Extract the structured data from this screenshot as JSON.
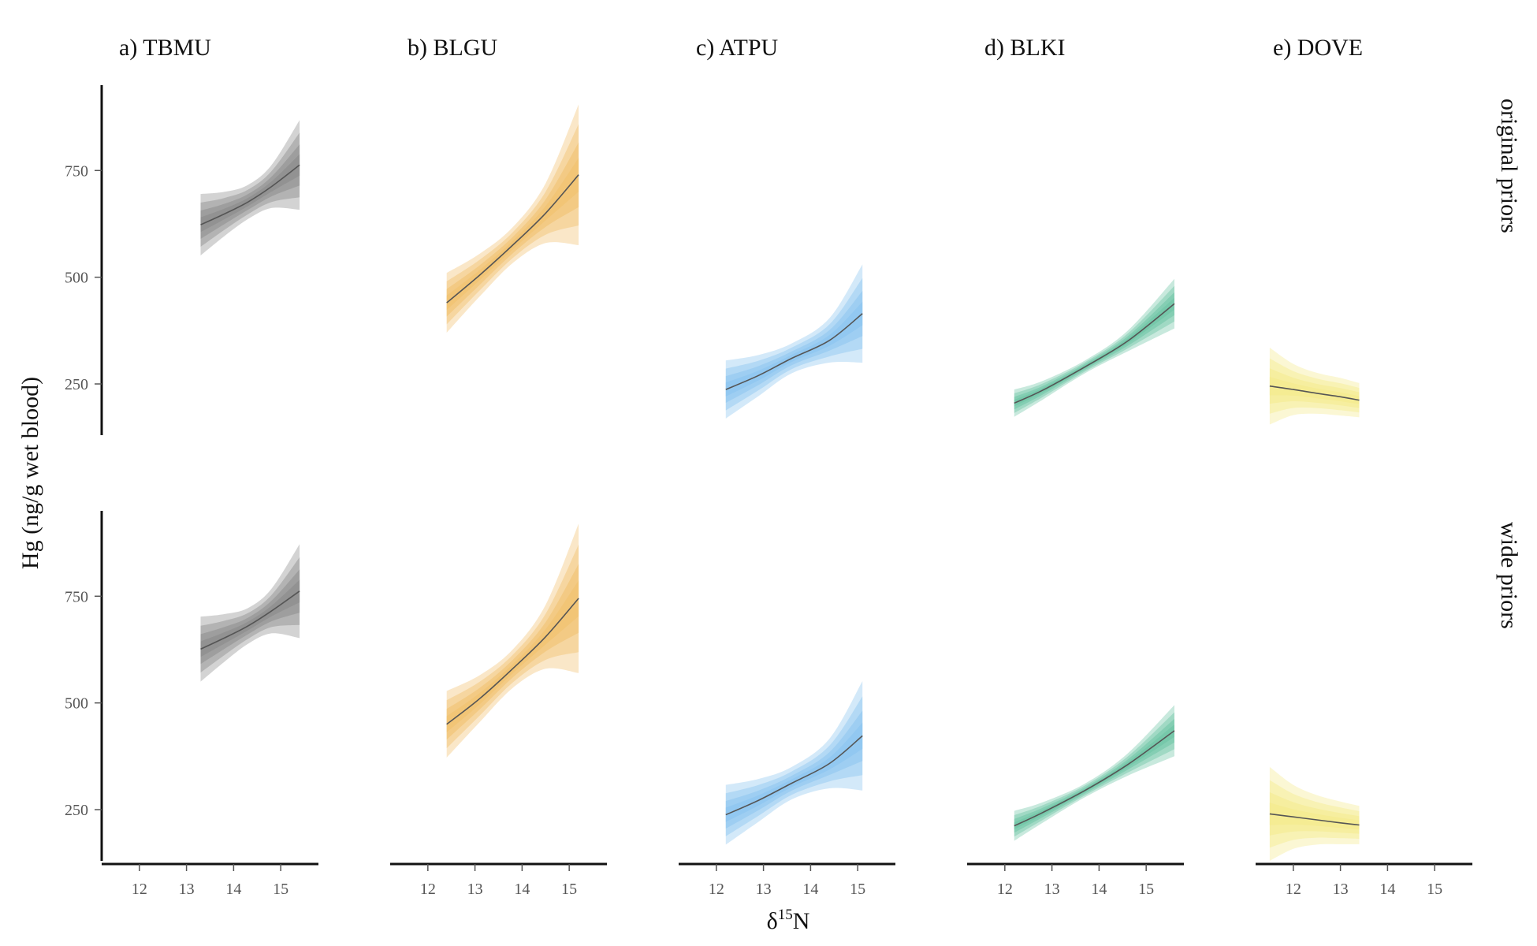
{
  "chart_data": {
    "type": "area",
    "title": "",
    "xlabel": {
      "base": "δ",
      "superscript": "15",
      "suffix": "N"
    },
    "ylabel": "Hg (ng/g wet blood)",
    "xlim": [
      11.2,
      15.8
    ],
    "ylim": [
      130,
      950
    ],
    "x_ticks": [
      12,
      13,
      14,
      15
    ],
    "y_ticks": [
      250,
      500,
      750
    ],
    "grid": false,
    "legend": "none",
    "rows": [
      {
        "label": "original priors"
      },
      {
        "label": "wide priors"
      }
    ],
    "panels": [
      {
        "title": "a) TBMU",
        "color": "#8c8c8c",
        "x": [
          13.3,
          13.8,
          14.3,
          14.8,
          15.4
        ],
        "median": [
          [
            623,
            648,
            676,
            712,
            763
          ],
          [
            626,
            652,
            680,
            715,
            762
          ]
        ],
        "outer_half_width": [
          [
            72,
            52,
            40,
            50,
            105
          ],
          [
            76,
            56,
            42,
            52,
            110
          ]
        ]
      },
      {
        "title": "b) BLGU",
        "color": "#f1c16e",
        "x": [
          12.4,
          13.1,
          13.8,
          14.5,
          15.2
        ],
        "median": [
          [
            440,
            505,
            575,
            650,
            740
          ],
          [
            450,
            510,
            580,
            655,
            745
          ]
        ],
        "outer_half_width": [
          [
            70,
            50,
            42,
            70,
            165
          ],
          [
            78,
            55,
            45,
            75,
            175
          ]
        ]
      },
      {
        "title": "c) ATPU",
        "color": "#8cc5ef",
        "x": [
          12.2,
          12.9,
          13.6,
          14.4,
          15.1
        ],
        "median": [
          [
            237,
            270,
            310,
            352,
            415
          ],
          [
            238,
            272,
            312,
            358,
            423
          ]
        ],
        "outer_half_width": [
          [
            68,
            48,
            35,
            52,
            115
          ],
          [
            70,
            50,
            38,
            58,
            128
          ]
        ]
      },
      {
        "title": "d) BLKI",
        "color": "#6ec5a6",
        "x": [
          12.2,
          12.8,
          13.7,
          14.6,
          15.6
        ],
        "median": [
          [
            205,
            235,
            290,
            350,
            438
          ],
          [
            212,
            243,
            295,
            355,
            435
          ]
        ],
        "outer_half_width": [
          [
            32,
            22,
            15,
            24,
            58
          ],
          [
            35,
            24,
            16,
            26,
            60
          ]
        ]
      },
      {
        "title": "e) DOVE",
        "color": "#f4eb8e",
        "x": [
          11.5,
          12.0,
          12.5,
          13.0,
          13.4
        ],
        "median": [
          [
            245,
            237,
            228,
            220,
            212
          ],
          [
            240,
            233,
            226,
            219,
            214
          ]
        ],
        "outer_half_width": [
          [
            90,
            60,
            48,
            44,
            40
          ],
          [
            110,
            75,
            58,
            50,
            45
          ]
        ]
      }
    ]
  }
}
